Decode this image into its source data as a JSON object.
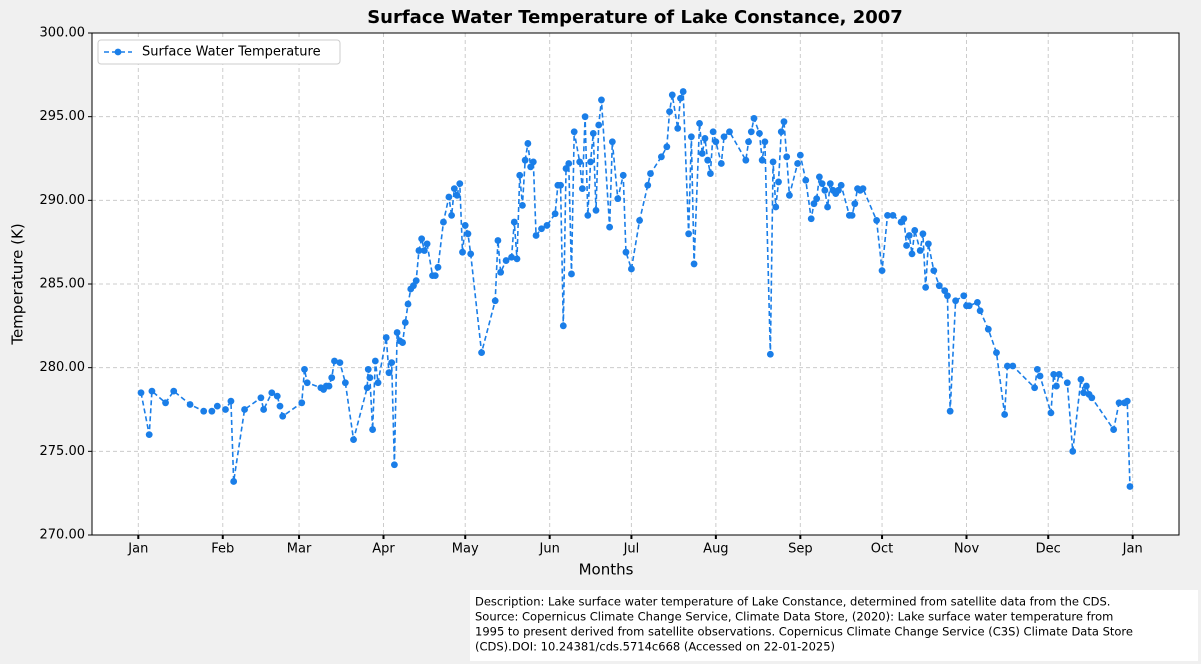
{
  "chart_data": {
    "type": "line",
    "title": "Surface Water Temperature of Lake Constance, 2007",
    "x_label": "Months",
    "y_label": "Temperature (K)",
    "legend": "upper left",
    "grid": true,
    "description": [
      "Description: Lake surface water temperature of Lake Constance, determined from satellite data from the CDS.",
      "Source: Copernicus Climate Change Service, Climate Data Store, (2020): Lake surface water temperature from",
      "1995 to present derived from satellite observations. Copernicus Climate Change Service (C3S) Climate Data Store",
      "(CDS).DOI: 10.24381/cds.5714c668 (Accessed on 22-01-2025)"
    ],
    "xlim": [
      -17,
      382
    ],
    "xticks": [
      {
        "value": 0,
        "label": "Jan"
      },
      {
        "value": 31,
        "label": "Feb"
      },
      {
        "value": 59,
        "label": "Mar"
      },
      {
        "value": 90,
        "label": "Apr"
      },
      {
        "value": 120,
        "label": "May"
      },
      {
        "value": 151,
        "label": "Jun"
      },
      {
        "value": 181,
        "label": "Jul"
      },
      {
        "value": 212,
        "label": "Aug"
      },
      {
        "value": 243,
        "label": "Sep"
      },
      {
        "value": 273,
        "label": "Oct"
      },
      {
        "value": 304,
        "label": "Nov"
      },
      {
        "value": 334,
        "label": "Dec"
      },
      {
        "value": 365,
        "label": "Jan"
      }
    ],
    "ylim": [
      270,
      300
    ],
    "yticks": [
      {
        "value": 270,
        "label": "270.00"
      },
      {
        "value": 275,
        "label": "275.00"
      },
      {
        "value": 280,
        "label": "280.00"
      },
      {
        "value": 285,
        "label": "285.00"
      },
      {
        "value": 290,
        "label": "290.00"
      },
      {
        "value": 295,
        "label": "295.00"
      },
      {
        "value": 300,
        "label": "300.00"
      }
    ],
    "x": [
      1,
      4,
      5,
      10,
      13,
      19,
      24,
      27,
      29,
      32,
      34,
      35,
      39,
      45,
      46,
      49,
      51,
      52,
      53,
      60,
      61,
      62,
      67,
      68,
      69,
      70,
      71,
      72,
      74,
      76,
      79,
      84,
      84.4,
      85,
      86,
      87,
      88,
      91,
      92,
      93,
      94,
      95,
      96,
      97,
      98,
      99,
      100,
      101,
      102,
      103,
      104,
      105,
      106,
      108,
      109,
      110,
      112,
      114,
      115,
      116,
      117,
      118,
      119,
      120,
      121,
      122,
      126,
      131,
      132,
      133,
      135,
      137,
      138,
      139,
      140,
      141,
      142,
      143,
      144,
      145,
      146,
      148,
      150,
      153,
      154,
      155,
      156,
      157,
      158,
      159,
      160,
      162,
      163,
      164,
      165,
      166,
      167,
      168,
      169,
      170,
      173,
      174,
      176,
      178,
      179,
      181,
      184,
      187,
      188,
      192,
      194,
      195,
      196,
      198,
      199,
      200,
      202,
      203,
      204,
      206,
      207,
      208,
      209,
      210,
      211,
      212,
      214,
      215,
      217,
      223,
      224,
      225,
      226,
      228,
      229,
      230,
      232,
      233,
      234,
      235,
      236,
      237,
      238,
      239,
      242,
      243,
      245,
      247,
      248,
      249,
      250,
      251,
      252,
      253,
      254,
      255,
      256,
      257,
      258,
      261,
      262,
      263,
      264,
      265,
      266,
      271,
      273,
      275,
      277,
      280,
      281,
      282,
      283,
      284,
      285,
      287,
      288,
      289,
      290,
      292,
      294,
      296,
      297,
      298,
      300,
      303,
      304,
      305,
      308,
      309,
      312,
      315,
      318,
      319,
      321,
      329,
      330,
      331,
      335,
      336,
      337,
      338,
      341,
      343,
      346,
      347,
      348,
      349,
      350,
      358,
      360,
      362,
      363,
      364
    ],
    "series": [
      {
        "name": "Surface Water Temperature",
        "color": "#1a7ee8",
        "values": [
          278.5,
          276.0,
          278.6,
          277.9,
          278.6,
          277.8,
          277.4,
          277.4,
          277.7,
          277.5,
          278.0,
          273.2,
          277.5,
          278.2,
          277.5,
          278.5,
          278.3,
          277.7,
          277.1,
          277.9,
          279.9,
          279.1,
          278.8,
          278.7,
          278.9,
          278.9,
          279.4,
          280.4,
          280.3,
          279.1,
          275.7,
          278.8,
          279.9,
          279.4,
          276.3,
          280.4,
          279.1,
          281.8,
          279.7,
          280.3,
          274.2,
          282.1,
          281.6,
          281.5,
          282.7,
          283.8,
          284.7,
          284.9,
          285.2,
          287.0,
          287.7,
          287.0,
          287.4,
          285.5,
          285.5,
          286.0,
          288.7,
          290.2,
          289.1,
          290.7,
          290.3,
          291.0,
          286.9,
          288.5,
          288.0,
          286.8,
          280.9,
          284.0,
          287.6,
          285.7,
          286.4,
          286.6,
          288.7,
          286.5,
          291.5,
          289.7,
          292.4,
          293.4,
          292.0,
          292.3,
          287.9,
          288.3,
          288.5,
          289.2,
          290.9,
          290.9,
          282.5,
          291.9,
          292.2,
          285.6,
          294.1,
          292.3,
          290.7,
          295.0,
          289.1,
          292.3,
          294.0,
          289.4,
          294.5,
          296.0,
          288.4,
          293.5,
          290.1,
          291.5,
          286.9,
          285.9,
          288.8,
          290.9,
          291.6,
          292.6,
          293.2,
          295.3,
          296.3,
          294.3,
          296.1,
          296.5,
          288.0,
          293.8,
          286.2,
          294.6,
          292.8,
          293.7,
          292.4,
          291.6,
          294.1,
          293.5,
          292.2,
          293.8,
          294.1,
          292.4,
          293.5,
          294.1,
          294.9,
          294.0,
          292.4,
          293.5,
          280.8,
          292.3,
          289.6,
          291.1,
          294.1,
          294.7,
          292.6,
          290.3,
          292.2,
          292.7,
          291.2,
          288.9,
          289.8,
          290.1,
          291.4,
          291.0,
          290.6,
          289.6,
          291.0,
          290.6,
          290.4,
          290.6,
          290.9,
          289.1,
          289.1,
          289.8,
          290.7,
          290.6,
          290.7,
          288.8,
          285.8,
          289.1,
          289.1,
          288.7,
          288.9,
          287.3,
          287.9,
          286.8,
          288.2,
          287.0,
          288.0,
          284.8,
          287.4,
          285.8,
          284.9,
          284.6,
          284.3,
          277.4,
          284.0,
          284.3,
          283.7,
          283.7,
          283.9,
          283.4,
          282.3,
          280.9,
          277.2,
          280.1,
          280.1,
          278.8,
          279.9,
          279.5,
          277.3,
          279.6,
          278.9,
          279.6,
          279.1,
          275.0,
          279.3,
          278.5,
          278.9,
          278.4,
          278.2,
          276.3,
          277.9,
          277.9,
          278.0,
          272.9
        ]
      }
    ]
  }
}
